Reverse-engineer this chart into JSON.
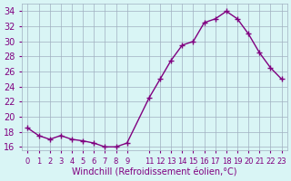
{
  "x": [
    0,
    1,
    2,
    3,
    4,
    5,
    6,
    7,
    8,
    9,
    11,
    12,
    13,
    14,
    15,
    16,
    17,
    18,
    19,
    20,
    21,
    22,
    23
  ],
  "y": [
    18.5,
    17.5,
    17.0,
    17.5,
    17.0,
    16.8,
    16.5,
    16.0,
    16.0,
    16.5,
    22.5,
    25.0,
    27.5,
    29.5,
    30.0,
    32.5,
    33.0,
    34.0,
    33.0,
    31.0,
    28.5,
    26.5,
    25.0
  ],
  "line_color": "#800080",
  "bg_color": "#d9f5f5",
  "grid_color": "#a0b0c0",
  "xlabel": "Windchill (Refroidissement éolien,°C)",
  "xlabel_color": "#800080",
  "tick_color": "#800080",
  "ylabel_ticks": [
    16,
    18,
    20,
    22,
    24,
    26,
    28,
    30,
    32,
    34
  ],
  "ylim": [
    15.5,
    35.0
  ],
  "xlim": [
    -0.5,
    23.5
  ],
  "xtick_positions": [
    0,
    1,
    2,
    3,
    4,
    5,
    6,
    7,
    8,
    9,
    11,
    12,
    13,
    14,
    15,
    16,
    17,
    18,
    19,
    20,
    21,
    22,
    23
  ],
  "xtick_labels": [
    "0",
    "1",
    "2",
    "3",
    "4",
    "5",
    "6",
    "7",
    "8",
    "9",
    "11",
    "12",
    "13",
    "14",
    "15",
    "16",
    "17",
    "18",
    "19",
    "20",
    "21",
    "22",
    "23"
  ],
  "marker": "+",
  "markersize": 5,
  "linewidth": 1.0
}
